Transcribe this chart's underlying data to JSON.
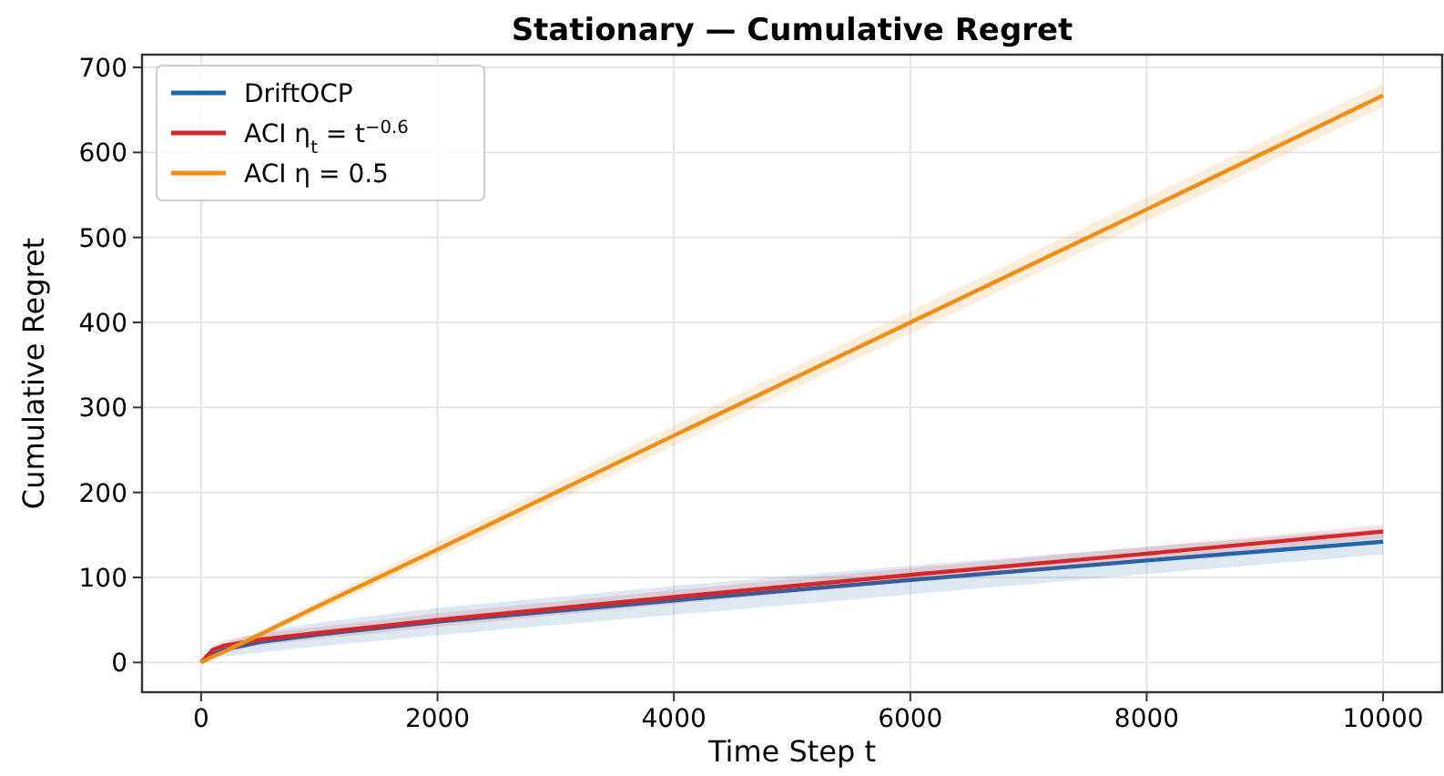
{
  "chart_data": {
    "type": "line",
    "title": "Stationary — Cumulative Regret",
    "xlabel": "Time Step t",
    "ylabel": "Cumulative Regret",
    "x": [
      0,
      100,
      200,
      500,
      1000,
      2000,
      4000,
      6000,
      8000,
      10000
    ],
    "series": [
      {
        "name": "DriftOCP",
        "color": "#2166ac",
        "values": [
          0,
          10,
          15,
          24,
          33,
          48,
          73,
          97,
          120,
          142
        ],
        "lower": [
          0,
          4,
          7,
          12,
          19,
          32,
          56,
          80,
          104,
          127
        ],
        "upper": [
          0,
          16,
          23,
          36,
          47,
          64,
          90,
          114,
          136,
          157
        ]
      },
      {
        "name": "ACI η$_{t}$ = t$^{−0.6}$",
        "color": "#d62728",
        "values": [
          0,
          15,
          20,
          27,
          35,
          50,
          77,
          103,
          128,
          154
        ],
        "lower": [
          0,
          10,
          14,
          20,
          28,
          42,
          69,
          95,
          120,
          146
        ],
        "upper": [
          0,
          20,
          26,
          34,
          42,
          58,
          85,
          111,
          136,
          162
        ]
      },
      {
        "name": "ACI η = 0.5",
        "color": "#f28e16",
        "values": [
          0,
          7,
          13,
          33,
          67,
          133,
          267,
          400,
          533,
          667
        ],
        "lower": [
          0,
          6,
          11,
          29,
          61,
          124,
          255,
          387,
          519,
          653
        ],
        "upper": [
          0,
          8,
          15,
          37,
          73,
          142,
          279,
          413,
          547,
          681
        ]
      }
    ],
    "xlim": [
      -500,
      10500
    ],
    "ylim": [
      -35,
      715
    ],
    "xticks": [
      0,
      2000,
      4000,
      6000,
      8000,
      10000
    ],
    "yticks": [
      0,
      100,
      200,
      300,
      400,
      500,
      600,
      700
    ],
    "grid": true,
    "legend": "top left"
  }
}
